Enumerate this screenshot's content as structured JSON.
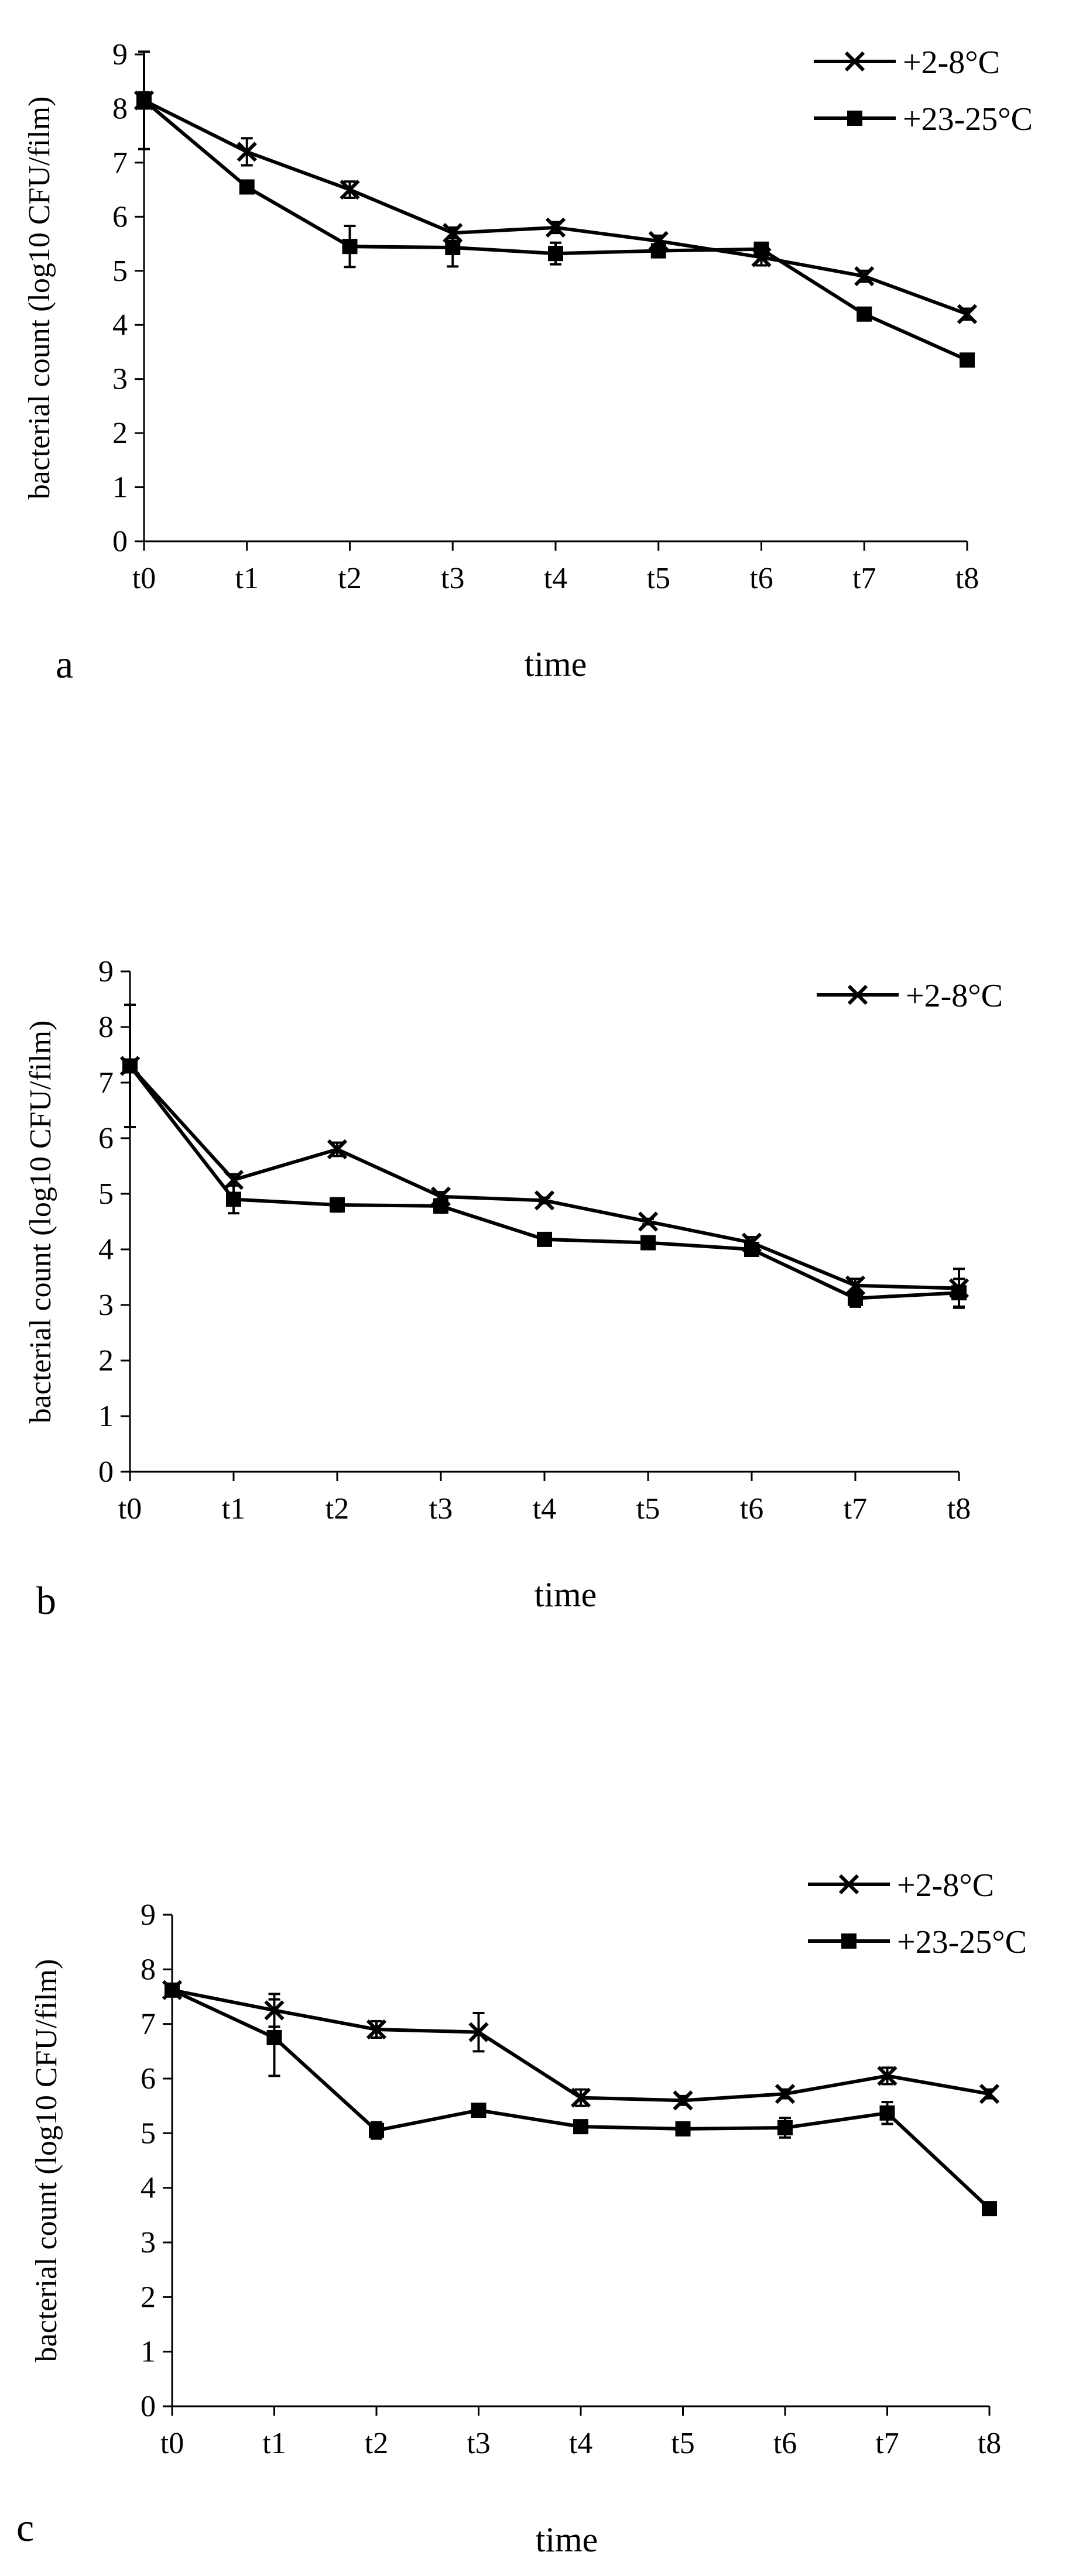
{
  "chart_data": [
    {
      "type": "line",
      "panel_label": "a",
      "categories": [
        "t0",
        "t1",
        "t2",
        "t3",
        "t4",
        "t5",
        "t6",
        "t7",
        "t8"
      ],
      "xlabel": "time",
      "ylabel": "bacterial count (log10 CFU/film)",
      "ylim": [
        0,
        9
      ],
      "yticks": [
        0,
        1,
        2,
        3,
        4,
        5,
        6,
        7,
        8,
        9
      ],
      "legend_position": "top-right",
      "series": [
        {
          "name": "+2-8°C",
          "marker": "x",
          "values": [
            8.15,
            7.2,
            6.5,
            5.7,
            5.8,
            5.55,
            5.25,
            4.9,
            4.2
          ],
          "errors": [
            0.15,
            0.25,
            0.15,
            0.1,
            0.1,
            0.1,
            0.15,
            0.1,
            0.1
          ]
        },
        {
          "name": "+23-25°C",
          "marker": "square",
          "values": [
            8.15,
            6.55,
            5.45,
            5.43,
            5.32,
            5.37,
            5.4,
            4.2,
            3.35
          ],
          "errors": [
            0.9,
            0.08,
            0.38,
            0.35,
            0.2,
            0.12,
            0.1,
            0.1,
            0.08
          ]
        }
      ]
    },
    {
      "type": "line",
      "panel_label": "b",
      "categories": [
        "t0",
        "t1",
        "t2",
        "t3",
        "t4",
        "t5",
        "t6",
        "t7",
        "t8"
      ],
      "xlabel": "time",
      "ylabel": "bacterial count (log10 CFU/film)",
      "ylim": [
        0,
        9
      ],
      "yticks": [
        0,
        1,
        2,
        3,
        4,
        5,
        6,
        7,
        8,
        9
      ],
      "legend_position": "top-right",
      "series": [
        {
          "name": "+2-8°C",
          "marker": "x",
          "values": [
            7.3,
            5.25,
            5.8,
            4.95,
            4.88,
            4.5,
            4.12,
            3.35,
            3.3
          ],
          "errors": [
            1.1,
            0.1,
            0.12,
            0.08,
            0.05,
            0.05,
            0.1,
            0.12,
            0.35
          ]
        },
        {
          "name": "",
          "marker": "square",
          "values": [
            7.3,
            4.9,
            4.8,
            4.78,
            4.18,
            4.12,
            4.0,
            3.12,
            3.22
          ],
          "errors": [
            0.1,
            0.25,
            0.12,
            0.12,
            0.08,
            0.08,
            0.1,
            0.15,
            0.25
          ]
        }
      ]
    },
    {
      "type": "line",
      "panel_label": "c",
      "categories": [
        "t0",
        "t1",
        "t2",
        "t3",
        "t4",
        "t5",
        "t6",
        "t7",
        "t8"
      ],
      "xlabel": "time",
      "ylabel": "bacterial count (log10 CFU/film)",
      "ylim": [
        0,
        9
      ],
      "yticks": [
        0,
        1,
        2,
        3,
        4,
        5,
        6,
        7,
        8,
        9
      ],
      "legend_position": "top-right",
      "series": [
        {
          "name": "+2-8°C",
          "marker": "x",
          "values": [
            7.62,
            7.25,
            6.9,
            6.85,
            5.65,
            5.6,
            5.72,
            6.05,
            5.72
          ],
          "errors": [
            0.08,
            0.3,
            0.15,
            0.35,
            0.15,
            0.08,
            0.08,
            0.15,
            0.08
          ]
        },
        {
          "name": "+23-25°C",
          "marker": "square",
          "values": [
            7.62,
            6.75,
            5.05,
            5.42,
            5.12,
            5.08,
            5.1,
            5.37,
            3.62
          ],
          "errors": [
            0.08,
            0.7,
            0.15,
            0.1,
            0.08,
            0.1,
            0.18,
            0.2,
            0.08
          ]
        }
      ]
    }
  ]
}
